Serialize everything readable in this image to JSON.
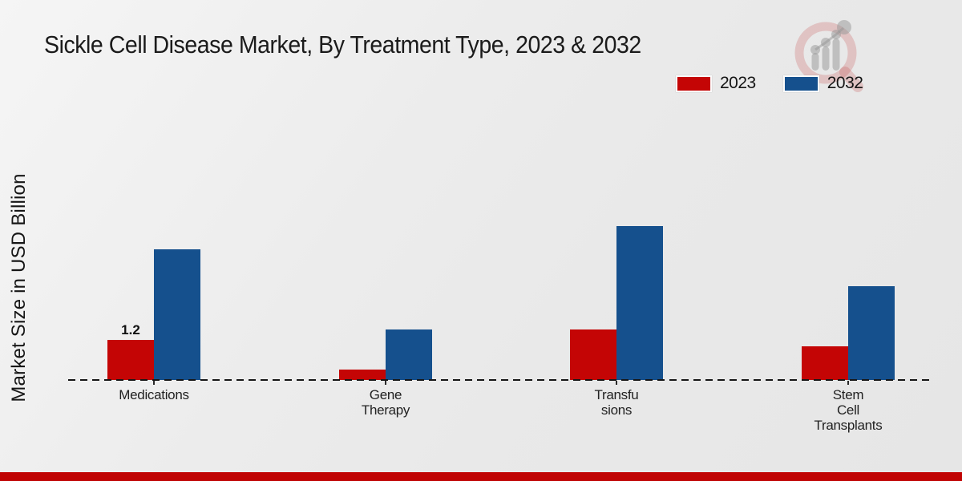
{
  "chart_data": {
    "type": "bar",
    "title": "Sickle Cell Disease Market, By Treatment Type, 2023 & 2032",
    "ylabel": "Market Size in USD Billion",
    "xlabel": "",
    "ylim": [
      0,
      5
    ],
    "grid": false,
    "legend_position": "top-right",
    "categories": [
      "Medications",
      "Gene Therapy",
      "Transfusions",
      "Stem Cell Transplants"
    ],
    "category_label_lines": [
      [
        "Medications"
      ],
      [
        "Gene",
        "Therapy"
      ],
      [
        "Transfu",
        "sions"
      ],
      [
        "Stem",
        "Cell",
        "Transplants"
      ]
    ],
    "series": [
      {
        "name": "2023",
        "color": "#c40505",
        "values": [
          1.2,
          0.3,
          1.5,
          1.0
        ],
        "value_labels": [
          "1.2",
          "",
          "",
          ""
        ]
      },
      {
        "name": "2032",
        "color": "#15508d",
        "values": [
          3.9,
          1.5,
          4.6,
          2.8
        ],
        "value_labels": [
          "",
          "",
          "",
          ""
        ]
      }
    ],
    "annotations": [
      "1.2"
    ]
  },
  "colors": {
    "accent_red": "#c40505",
    "accent_blue": "#15508d",
    "footer_stripe": "#c00404",
    "background": "#ececec"
  },
  "icons": {
    "logo": "magnifier-bar-chart-watermark-icon"
  }
}
